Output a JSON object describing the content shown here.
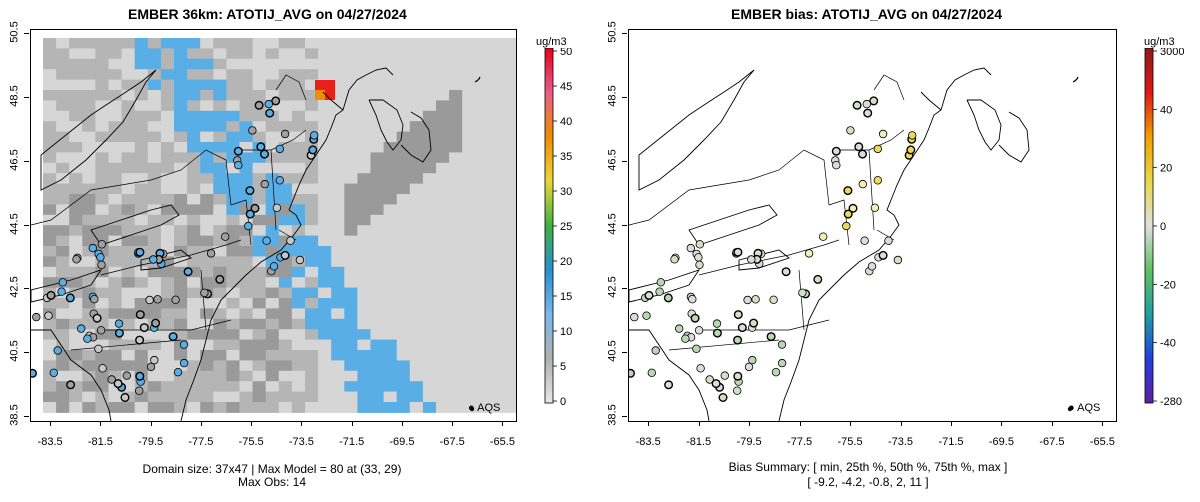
{
  "left": {
    "title": "EMBER 36km: ATOTIJ_AVG on 04/27/2024",
    "caption1": "Domain size: 37x47 | Max Model = 80 at (33, 29)",
    "caption2": "Max Obs: 14",
    "unit": "ug/m3",
    "colorbar_labels": [
      "50",
      "45",
      "40",
      "35",
      "30",
      "25",
      "20",
      "15",
      "10",
      "5",
      "0"
    ],
    "legend": "AQS"
  },
  "right": {
    "title": "EMBER bias: ATOTIJ_AVG on 04/27/2024",
    "caption1": "Bias Summary: [ min, 25th %, 50th %, 75th %, max ]",
    "caption2": "[ -9.2,   -4.2,   -0.8,   2,   11 ]",
    "unit": "ug/m3",
    "colorbar_labels": [
      "3000",
      "40",
      "20",
      "0",
      "-20",
      "-40",
      "-280"
    ],
    "legend": "AQS"
  },
  "axes": {
    "x_ticks": [
      "-83.5",
      "-81.5",
      "-79.5",
      "-77.5",
      "-75.5",
      "-73.5",
      "-71.5",
      "-69.5",
      "-67.5",
      "-65.5"
    ],
    "y_ticks": [
      "38.5",
      "40.5",
      "42.5",
      "44.5",
      "46.5",
      "48.5",
      "50.5"
    ],
    "xlim": [
      -84.3,
      -65.0
    ],
    "ylim": [
      38.5,
      50.5
    ]
  },
  "colors": {
    "grid_light": "#d6d6d6",
    "grid_mid": "#b5b5b5",
    "grid_dark": "#9a9a9a",
    "blue": "#5aaee6",
    "blue_dark": "#3d8fd0",
    "hot_red": "#e8211a",
    "hot_orange": "#f08c00",
    "bias_green": "#b9d7b0",
    "bias_yellow": "#eed85a",
    "bias_grey": "#dcdcdc"
  }
}
